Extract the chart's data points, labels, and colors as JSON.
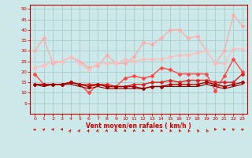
{
  "xlabel": "Vent moyen/en rafales ( km/h )",
  "xlim": [
    -0.5,
    23.5
  ],
  "ylim": [
    0,
    52
  ],
  "yticks": [
    5,
    10,
    15,
    20,
    25,
    30,
    35,
    40,
    45,
    50
  ],
  "xticks": [
    0,
    1,
    2,
    3,
    4,
    5,
    6,
    7,
    8,
    9,
    10,
    11,
    12,
    13,
    14,
    15,
    16,
    17,
    18,
    19,
    20,
    21,
    22,
    23
  ],
  "bg_color": "#cce8e8",
  "grid_color": "#aacccc",
  "series": [
    {
      "x": [
        0,
        1,
        2,
        3,
        4,
        5,
        6,
        7,
        8,
        9,
        10,
        11,
        12,
        13,
        14,
        15,
        16,
        17,
        18,
        19,
        20,
        21,
        22,
        23
      ],
      "y": [
        30,
        36,
        24,
        25,
        27,
        25,
        22,
        23,
        28,
        24,
        24,
        27,
        34,
        33,
        36,
        40,
        40,
        36,
        37,
        30,
        24,
        30,
        47,
        42
      ],
      "color": "#ffaaaa",
      "lw": 0.9,
      "marker": "D",
      "ms": 2.0
    },
    {
      "x": [
        0,
        1,
        2,
        3,
        4,
        5,
        6,
        7,
        8,
        9,
        10,
        11,
        12,
        13,
        14,
        15,
        16,
        17,
        18,
        19,
        20,
        21,
        22,
        23
      ],
      "y": [
        22,
        23,
        25,
        25,
        27,
        24,
        21,
        24,
        24,
        24,
        26,
        25,
        26,
        26,
        26,
        27,
        28,
        28,
        29,
        30,
        24,
        24,
        31,
        31
      ],
      "color": "#ffbbbb",
      "lw": 0.9,
      "marker": "D",
      "ms": 2.0
    },
    {
      "x": [
        0,
        1,
        2,
        3,
        4,
        5,
        6,
        7,
        8,
        9,
        10,
        11,
        12,
        13,
        14,
        15,
        16,
        17,
        18,
        19,
        20,
        21,
        22,
        23
      ],
      "y": [
        19,
        14,
        14,
        14,
        15,
        14,
        10,
        14,
        13,
        13,
        17,
        18,
        17,
        18,
        22,
        21,
        19,
        19,
        19,
        19,
        11,
        18,
        26,
        20
      ],
      "color": "#ff4444",
      "lw": 1.0,
      "marker": "D",
      "ms": 2.0
    },
    {
      "x": [
        0,
        1,
        2,
        3,
        4,
        5,
        6,
        7,
        8,
        9,
        10,
        11,
        12,
        13,
        14,
        15,
        16,
        17,
        18,
        19,
        20,
        21,
        22,
        23
      ],
      "y": [
        14,
        14,
        14,
        14,
        15,
        14,
        14,
        14,
        14,
        13,
        13,
        14,
        14,
        15,
        15,
        16,
        15,
        16,
        16,
        16,
        15,
        15,
        15,
        19
      ],
      "color": "#dd2222",
      "lw": 1.0,
      "marker": "D",
      "ms": 2.0
    },
    {
      "x": [
        0,
        1,
        2,
        3,
        4,
        5,
        6,
        7,
        8,
        9,
        10,
        11,
        12,
        13,
        14,
        15,
        16,
        17,
        18,
        19,
        20,
        21,
        22,
        23
      ],
      "y": [
        14,
        14,
        14,
        14,
        15,
        14,
        13,
        14,
        13,
        13,
        13,
        13,
        12,
        13,
        13,
        14,
        14,
        14,
        14,
        15,
        14,
        13,
        14,
        15
      ],
      "color": "#aa0000",
      "lw": 1.0,
      "marker": "D",
      "ms": 2.0
    },
    {
      "x": [
        0,
        1,
        2,
        3,
        4,
        5,
        6,
        7,
        8,
        9,
        10,
        11,
        12,
        13,
        14,
        15,
        16,
        17,
        18,
        19,
        20,
        21,
        22,
        23
      ],
      "y": [
        14,
        13,
        14,
        14,
        14,
        13,
        12,
        13,
        12,
        12,
        12,
        12,
        12,
        13,
        13,
        13,
        13,
        13,
        13,
        14,
        13,
        12,
        13,
        14
      ],
      "color": "#880000",
      "lw": 0.8,
      "marker": null,
      "ms": 0
    }
  ],
  "text_color": "#cc0000",
  "axis_color": "#cc0000",
  "tick_color": "#cc0000",
  "arrow_angles": [
    20,
    25,
    30,
    35,
    40,
    45,
    50,
    55,
    65,
    75,
    85,
    95,
    105,
    110,
    115,
    120,
    125,
    130,
    135,
    140,
    145,
    148,
    152,
    155
  ]
}
